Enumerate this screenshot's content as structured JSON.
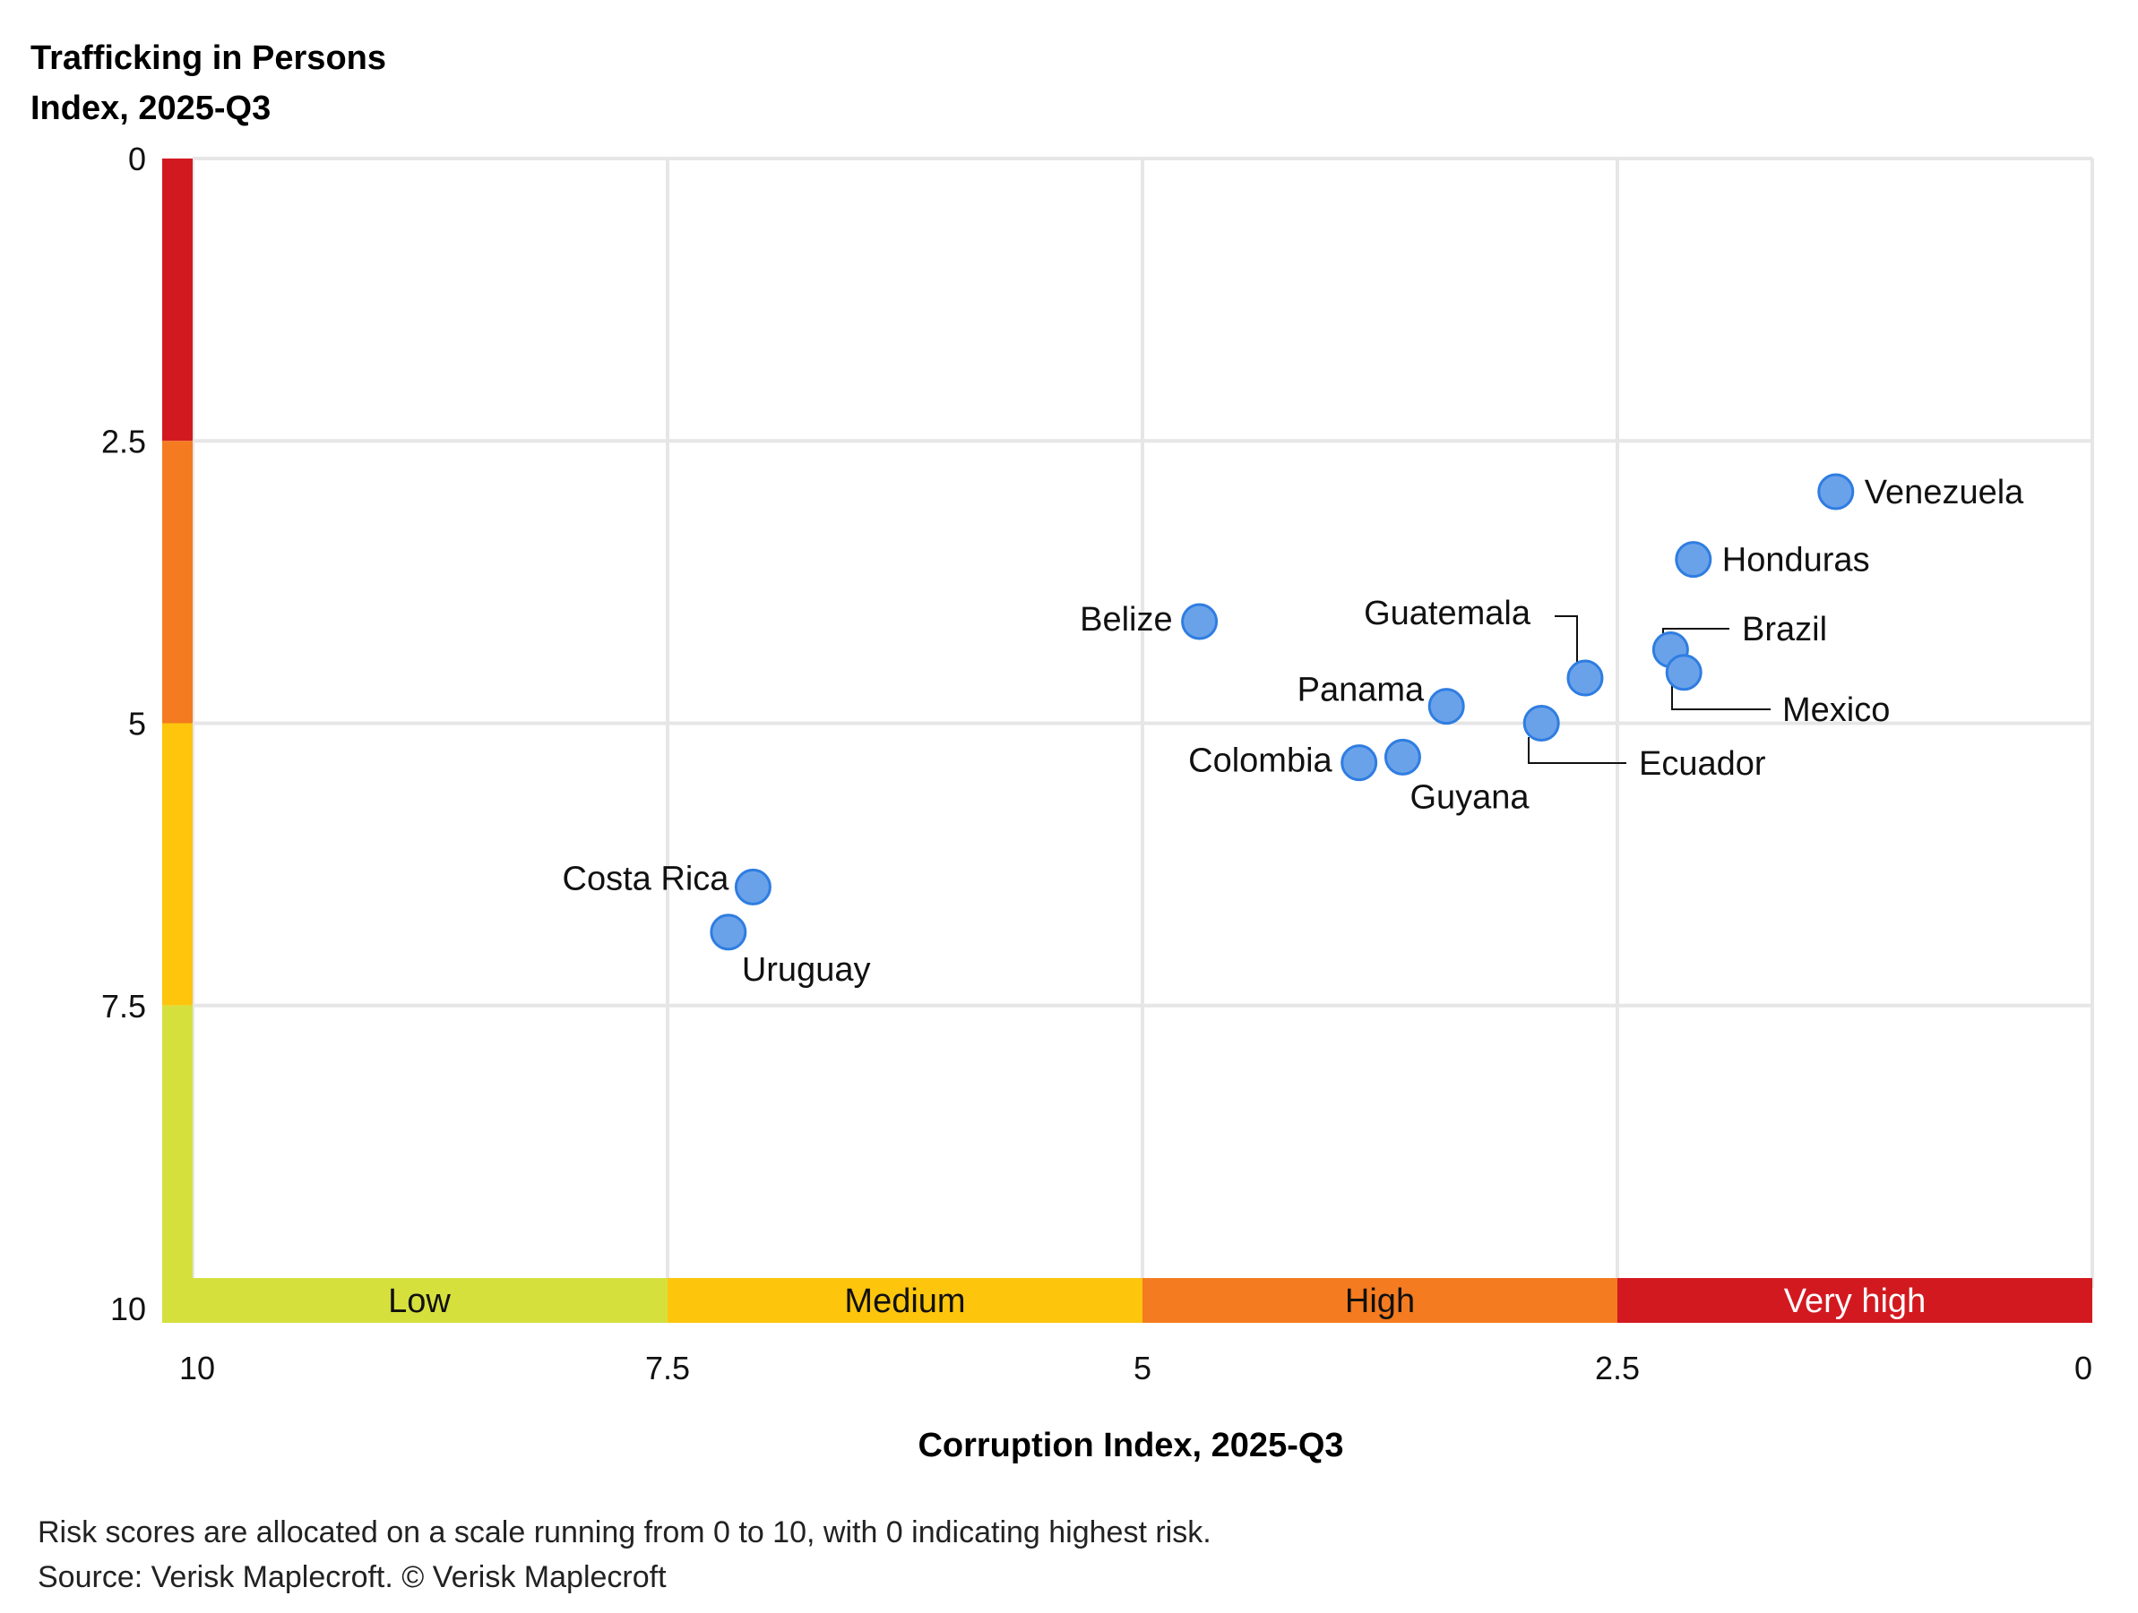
{
  "chart_data": {
    "type": "scatter",
    "title_lines": [
      "Trafficking in Persons",
      "Index, 2025-Q3"
    ],
    "xlabel": "Corruption Index, 2025-Q3",
    "ylabel": "Trafficking in Persons Index, 2025-Q3",
    "xlim": [
      10,
      0
    ],
    "ylim": [
      0,
      10
    ],
    "x_reversed": true,
    "y_reversed": true,
    "grid": true,
    "x_ticks": [
      "10",
      "7.5",
      "5",
      "2.5",
      "0"
    ],
    "x_tick_values": [
      10,
      7.5,
      5,
      2.5,
      0
    ],
    "y_ticks": [
      "0",
      "2.5",
      "5",
      "7.5",
      "10"
    ],
    "y_tick_values": [
      0,
      2.5,
      5,
      7.5,
      10
    ],
    "risk_bands": [
      {
        "label": "Low",
        "from": 10,
        "to": 7.5,
        "color": "#d6e03d",
        "text_color": "#111111"
      },
      {
        "label": "Medium",
        "from": 7.5,
        "to": 5,
        "color": "#fdc50c",
        "text_color": "#111111"
      },
      {
        "label": "High",
        "from": 5,
        "to": 2.5,
        "color": "#f47b20",
        "text_color": "#111111"
      },
      {
        "label": "Very high",
        "from": 2.5,
        "to": 0,
        "color": "#d31920",
        "text_color": "#ffffff"
      }
    ],
    "point_color": "#6aa2ea",
    "point_stroke": "#2f7de1",
    "points": [
      {
        "name": "Venezuela",
        "x": 1.35,
        "y": 2.95
      },
      {
        "name": "Honduras",
        "x": 2.1,
        "y": 3.55
      },
      {
        "name": "Brazil",
        "x": 2.22,
        "y": 4.35
      },
      {
        "name": "Mexico",
        "x": 2.15,
        "y": 4.55
      },
      {
        "name": "Guatemala",
        "x": 2.67,
        "y": 4.6
      },
      {
        "name": "Ecuador",
        "x": 2.9,
        "y": 5.0
      },
      {
        "name": "Belize",
        "x": 4.7,
        "y": 4.1
      },
      {
        "name": "Panama",
        "x": 3.4,
        "y": 4.85
      },
      {
        "name": "Guyana",
        "x": 3.63,
        "y": 5.3
      },
      {
        "name": "Colombia",
        "x": 3.86,
        "y": 5.35
      },
      {
        "name": "Costa Rica",
        "x": 7.05,
        "y": 6.45
      },
      {
        "name": "Uruguay",
        "x": 7.18,
        "y": 6.85
      }
    ]
  },
  "footnote": {
    "line1": "Risk scores are allocated on a scale running from 0 to 10, with 0 indicating highest risk.",
    "line2": "Source: Verisk Maplecroft. © Verisk Maplecroft"
  }
}
